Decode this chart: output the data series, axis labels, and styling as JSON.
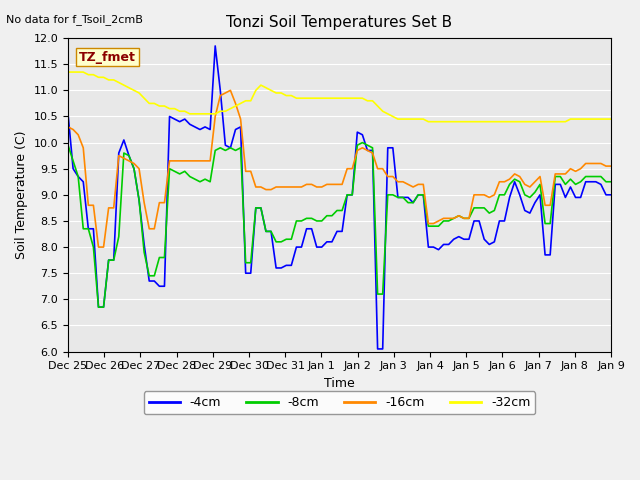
{
  "title": "Tonzi Soil Temperatures Set B",
  "no_data_text": "No data for f_Tsoil_2cmB",
  "tz_fmet_label": "TZ_fmet",
  "xlabel": "Time",
  "ylabel": "Soil Temperature (C)",
  "ylim": [
    6.0,
    12.0
  ],
  "yticks": [
    6.0,
    6.5,
    7.0,
    7.5,
    8.0,
    8.5,
    9.0,
    9.5,
    10.0,
    10.5,
    11.0,
    11.5,
    12.0
  ],
  "xtick_labels": [
    "Dec 25",
    "Dec 26",
    "Dec 27",
    "Dec 28",
    "Dec 29",
    "Dec 30",
    "Dec 31",
    "Jan 1",
    "Jan 2",
    "Jan 3",
    "Jan 4",
    "Jan 5",
    "Jan 6",
    "Jan 7",
    "Jan 8",
    "Jan 9"
  ],
  "colors": {
    "4cm": "#0000ff",
    "8cm": "#00cc00",
    "16cm": "#ff8800",
    "32cm": "#ffff00"
  },
  "bg_color": "#e8e8e8",
  "plot_bg": "#e8e8e8",
  "legend_labels": [
    "-4cm",
    "-8cm",
    "-16cm",
    "-32cm"
  ],
  "series_4cm": [
    10.55,
    9.5,
    9.35,
    9.25,
    8.35,
    8.35,
    6.85,
    6.85,
    7.75,
    7.75,
    9.8,
    10.05,
    9.75,
    9.5,
    8.9,
    8.05,
    7.35,
    7.35,
    7.25,
    7.25,
    10.5,
    10.45,
    10.4,
    10.45,
    10.35,
    10.3,
    10.25,
    10.3,
    10.25,
    11.85,
    11.0,
    9.95,
    9.9,
    10.25,
    10.3,
    7.5,
    7.5,
    8.75,
    8.75,
    8.3,
    8.3,
    7.6,
    7.6,
    7.65,
    7.65,
    8.0,
    8.0,
    8.35,
    8.35,
    8.0,
    8.0,
    8.1,
    8.1,
    8.3,
    8.3,
    9.0,
    9.0,
    10.2,
    10.15,
    9.85,
    9.85,
    6.05,
    6.05,
    9.9,
    9.9,
    8.95,
    8.95,
    8.95,
    8.85,
    9.0,
    9.0,
    8.0,
    8.0,
    7.95,
    8.05,
    8.05,
    8.15,
    8.2,
    8.15,
    8.15,
    8.5,
    8.5,
    8.15,
    8.05,
    8.1,
    8.5,
    8.5,
    8.95,
    9.25,
    9.0,
    8.7,
    8.65,
    8.85,
    9.0,
    7.85,
    7.85,
    9.2,
    9.2,
    8.95,
    9.15,
    8.95,
    8.95,
    9.25,
    9.25,
    9.25,
    9.2,
    9.0,
    9.0
  ],
  "series_8cm": [
    9.95,
    9.65,
    9.35,
    8.35,
    8.35,
    8.0,
    6.85,
    6.85,
    7.75,
    7.75,
    8.2,
    9.8,
    9.75,
    9.5,
    8.9,
    7.9,
    7.45,
    7.45,
    7.8,
    7.8,
    9.5,
    9.45,
    9.4,
    9.45,
    9.35,
    9.3,
    9.25,
    9.3,
    9.25,
    9.85,
    9.9,
    9.85,
    9.9,
    9.85,
    9.9,
    7.7,
    7.7,
    8.75,
    8.75,
    8.3,
    8.3,
    8.1,
    8.1,
    8.15,
    8.15,
    8.5,
    8.5,
    8.55,
    8.55,
    8.5,
    8.5,
    8.6,
    8.6,
    8.7,
    8.7,
    9.0,
    9.0,
    9.95,
    10.0,
    9.95,
    9.9,
    7.1,
    7.1,
    9.0,
    9.0,
    8.95,
    8.95,
    8.85,
    8.85,
    9.0,
    9.0,
    8.4,
    8.4,
    8.4,
    8.5,
    8.5,
    8.55,
    8.6,
    8.55,
    8.55,
    8.75,
    8.75,
    8.75,
    8.65,
    8.7,
    9.0,
    9.0,
    9.2,
    9.3,
    9.25,
    9.0,
    8.95,
    9.05,
    9.2,
    8.45,
    8.45,
    9.35,
    9.35,
    9.2,
    9.3,
    9.2,
    9.25,
    9.35,
    9.35,
    9.35,
    9.35,
    9.25,
    9.25
  ],
  "series_16cm": [
    10.3,
    10.25,
    10.15,
    9.9,
    8.8,
    8.8,
    8.0,
    8.0,
    8.75,
    8.75,
    9.75,
    9.7,
    9.65,
    9.6,
    9.5,
    8.85,
    8.35,
    8.35,
    8.85,
    8.85,
    9.65,
    9.65,
    9.65,
    9.65,
    9.65,
    9.65,
    9.65,
    9.65,
    9.65,
    10.5,
    10.9,
    10.95,
    11.0,
    10.75,
    10.45,
    9.45,
    9.45,
    9.15,
    9.15,
    9.1,
    9.1,
    9.15,
    9.15,
    9.15,
    9.15,
    9.15,
    9.15,
    9.2,
    9.2,
    9.15,
    9.15,
    9.2,
    9.2,
    9.2,
    9.2,
    9.5,
    9.5,
    9.85,
    9.9,
    9.85,
    9.8,
    9.5,
    9.5,
    9.35,
    9.35,
    9.25,
    9.25,
    9.2,
    9.15,
    9.2,
    9.2,
    8.45,
    8.45,
    8.5,
    8.55,
    8.55,
    8.55,
    8.6,
    8.55,
    8.55,
    9.0,
    9.0,
    9.0,
    8.95,
    9.0,
    9.25,
    9.25,
    9.3,
    9.4,
    9.35,
    9.2,
    9.15,
    9.25,
    9.35,
    8.8,
    8.8,
    9.4,
    9.4,
    9.4,
    9.5,
    9.45,
    9.5,
    9.6,
    9.6,
    9.6,
    9.6,
    9.55,
    9.55
  ],
  "series_32cm": [
    11.35,
    11.35,
    11.35,
    11.35,
    11.3,
    11.3,
    11.25,
    11.25,
    11.2,
    11.2,
    11.15,
    11.1,
    11.05,
    11.0,
    10.95,
    10.85,
    10.75,
    10.75,
    10.7,
    10.7,
    10.65,
    10.65,
    10.6,
    10.6,
    10.55,
    10.55,
    10.55,
    10.55,
    10.55,
    10.55,
    10.6,
    10.6,
    10.65,
    10.7,
    10.75,
    10.8,
    10.8,
    11.0,
    11.1,
    11.05,
    11.0,
    10.95,
    10.95,
    10.9,
    10.9,
    10.85,
    10.85,
    10.85,
    10.85,
    10.85,
    10.85,
    10.85,
    10.85,
    10.85,
    10.85,
    10.85,
    10.85,
    10.85,
    10.85,
    10.8,
    10.8,
    10.7,
    10.6,
    10.55,
    10.5,
    10.45,
    10.45,
    10.45,
    10.45,
    10.45,
    10.45,
    10.4,
    10.4,
    10.4,
    10.4,
    10.4,
    10.4,
    10.4,
    10.4,
    10.4,
    10.4,
    10.4,
    10.4,
    10.4,
    10.4,
    10.4,
    10.4,
    10.4,
    10.4,
    10.4,
    10.4,
    10.4,
    10.4,
    10.4,
    10.4,
    10.4,
    10.4,
    10.4,
    10.4,
    10.45,
    10.45,
    10.45,
    10.45,
    10.45,
    10.45,
    10.45,
    10.45,
    10.45
  ]
}
